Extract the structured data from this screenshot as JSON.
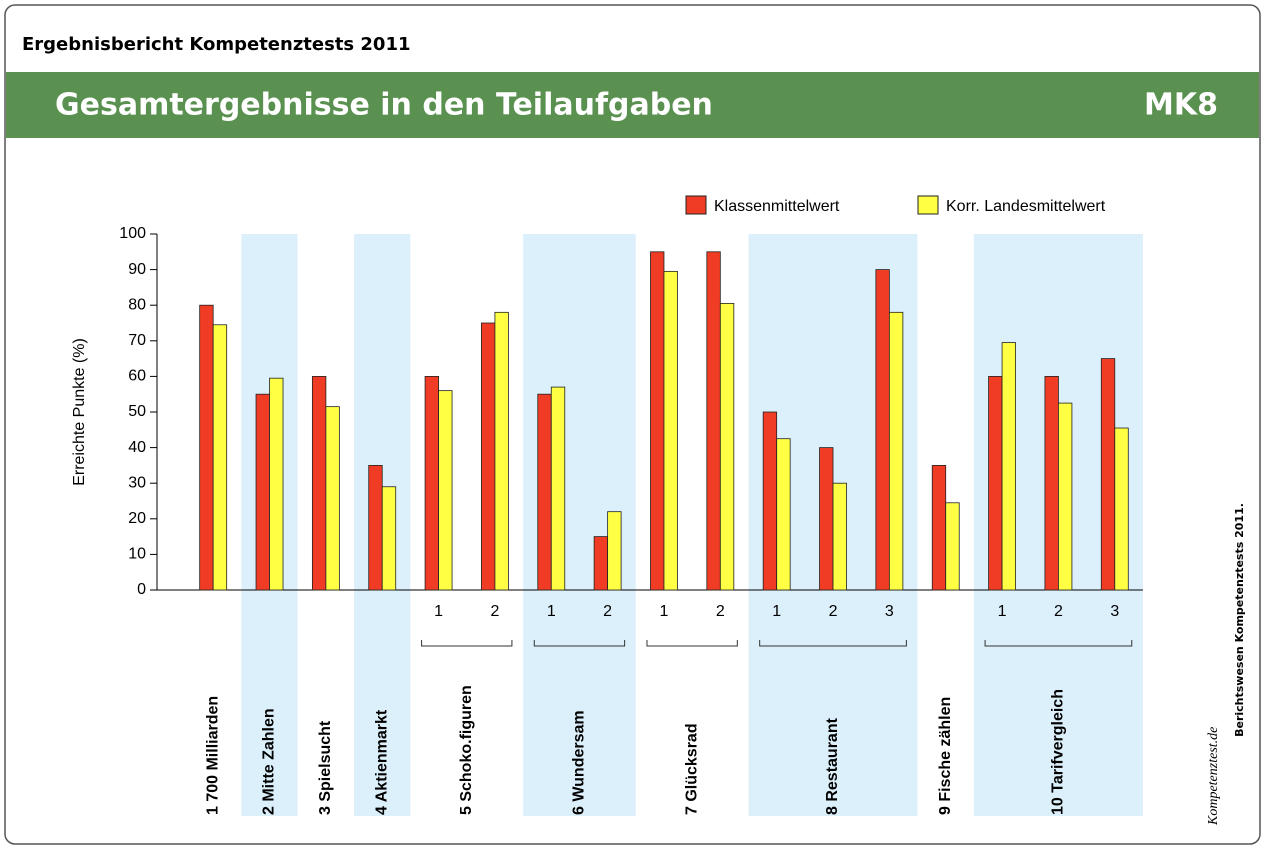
{
  "header": {
    "title": "Ergebnisbericht Kompetenztests 2011"
  },
  "banner": {
    "title": "Gesamtergebnisse in den Teilaufgaben",
    "code": "MK8"
  },
  "side": {
    "source": "Berichtswesen Kompetenztests 2011.",
    "logo": "Kompetenztest.de"
  },
  "chart_data": {
    "type": "bar",
    "ylabel": "Erreichte Punkte (%)",
    "ylim": [
      0,
      100
    ],
    "yticks": [
      0,
      10,
      20,
      30,
      40,
      50,
      60,
      70,
      80,
      90,
      100
    ],
    "legend": "top-right",
    "groups": [
      {
        "name": "1 700 Milliarden",
        "subtasks": []
      },
      {
        "name": "2 Mitte Zahlen",
        "subtasks": []
      },
      {
        "name": "3 Spielsucht",
        "subtasks": []
      },
      {
        "name": "4 Aktienmarkt",
        "subtasks": []
      },
      {
        "name": "5 Schoko.figuren",
        "subtasks": [
          "1",
          "2"
        ]
      },
      {
        "name": "6 Wundersam",
        "subtasks": [
          "1",
          "2"
        ]
      },
      {
        "name": "7 Glücksrad",
        "subtasks": [
          "1",
          "2"
        ]
      },
      {
        "name": "8 Restaurant",
        "subtasks": [
          "1",
          "2",
          "3"
        ]
      },
      {
        "name": "9 Fische zählen",
        "subtasks": []
      },
      {
        "name": "10 Tarifvergleich",
        "subtasks": [
          "1",
          "2",
          "3"
        ]
      }
    ],
    "series": [
      {
        "name": "Klassenmittelwert",
        "color": "#f03c24",
        "values": [
          80,
          55,
          60,
          35,
          60,
          75,
          55,
          15,
          95,
          95,
          50,
          40,
          90,
          35,
          60,
          60,
          65
        ]
      },
      {
        "name": "Korr. Landesmittelwert",
        "color": "#ffff44",
        "values": [
          74.5,
          59.5,
          51.5,
          29,
          56,
          78,
          57,
          22,
          89.5,
          80.5,
          42.5,
          30,
          78,
          24.5,
          69.5,
          52.5,
          45.5
        ]
      }
    ]
  }
}
